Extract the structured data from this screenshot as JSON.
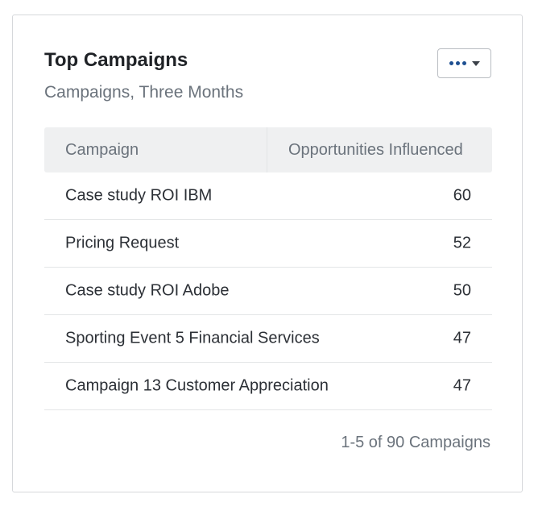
{
  "widget": {
    "title": "Top Campaigns",
    "subtitle": "Campaigns, Three Months",
    "menu_icon": "more-dots-icon",
    "menu_caret_icon": "caret-down-icon",
    "accent_color": "#1d4f91"
  },
  "table": {
    "columns": [
      "Campaign",
      "Opportunities Influenced"
    ],
    "rows": [
      {
        "campaign": "Case study ROI IBM",
        "opportunities": "60"
      },
      {
        "campaign": "Pricing Request",
        "opportunities": "52"
      },
      {
        "campaign": "Case study ROI Adobe",
        "opportunities": "50"
      },
      {
        "campaign": "Sporting Event 5 Financial Services",
        "opportunities": "47"
      },
      {
        "campaign": "Campaign 13 Customer Appreciation",
        "opportunities": "47"
      }
    ]
  },
  "pagination": {
    "text": "1-5 of 90 Campaigns"
  }
}
